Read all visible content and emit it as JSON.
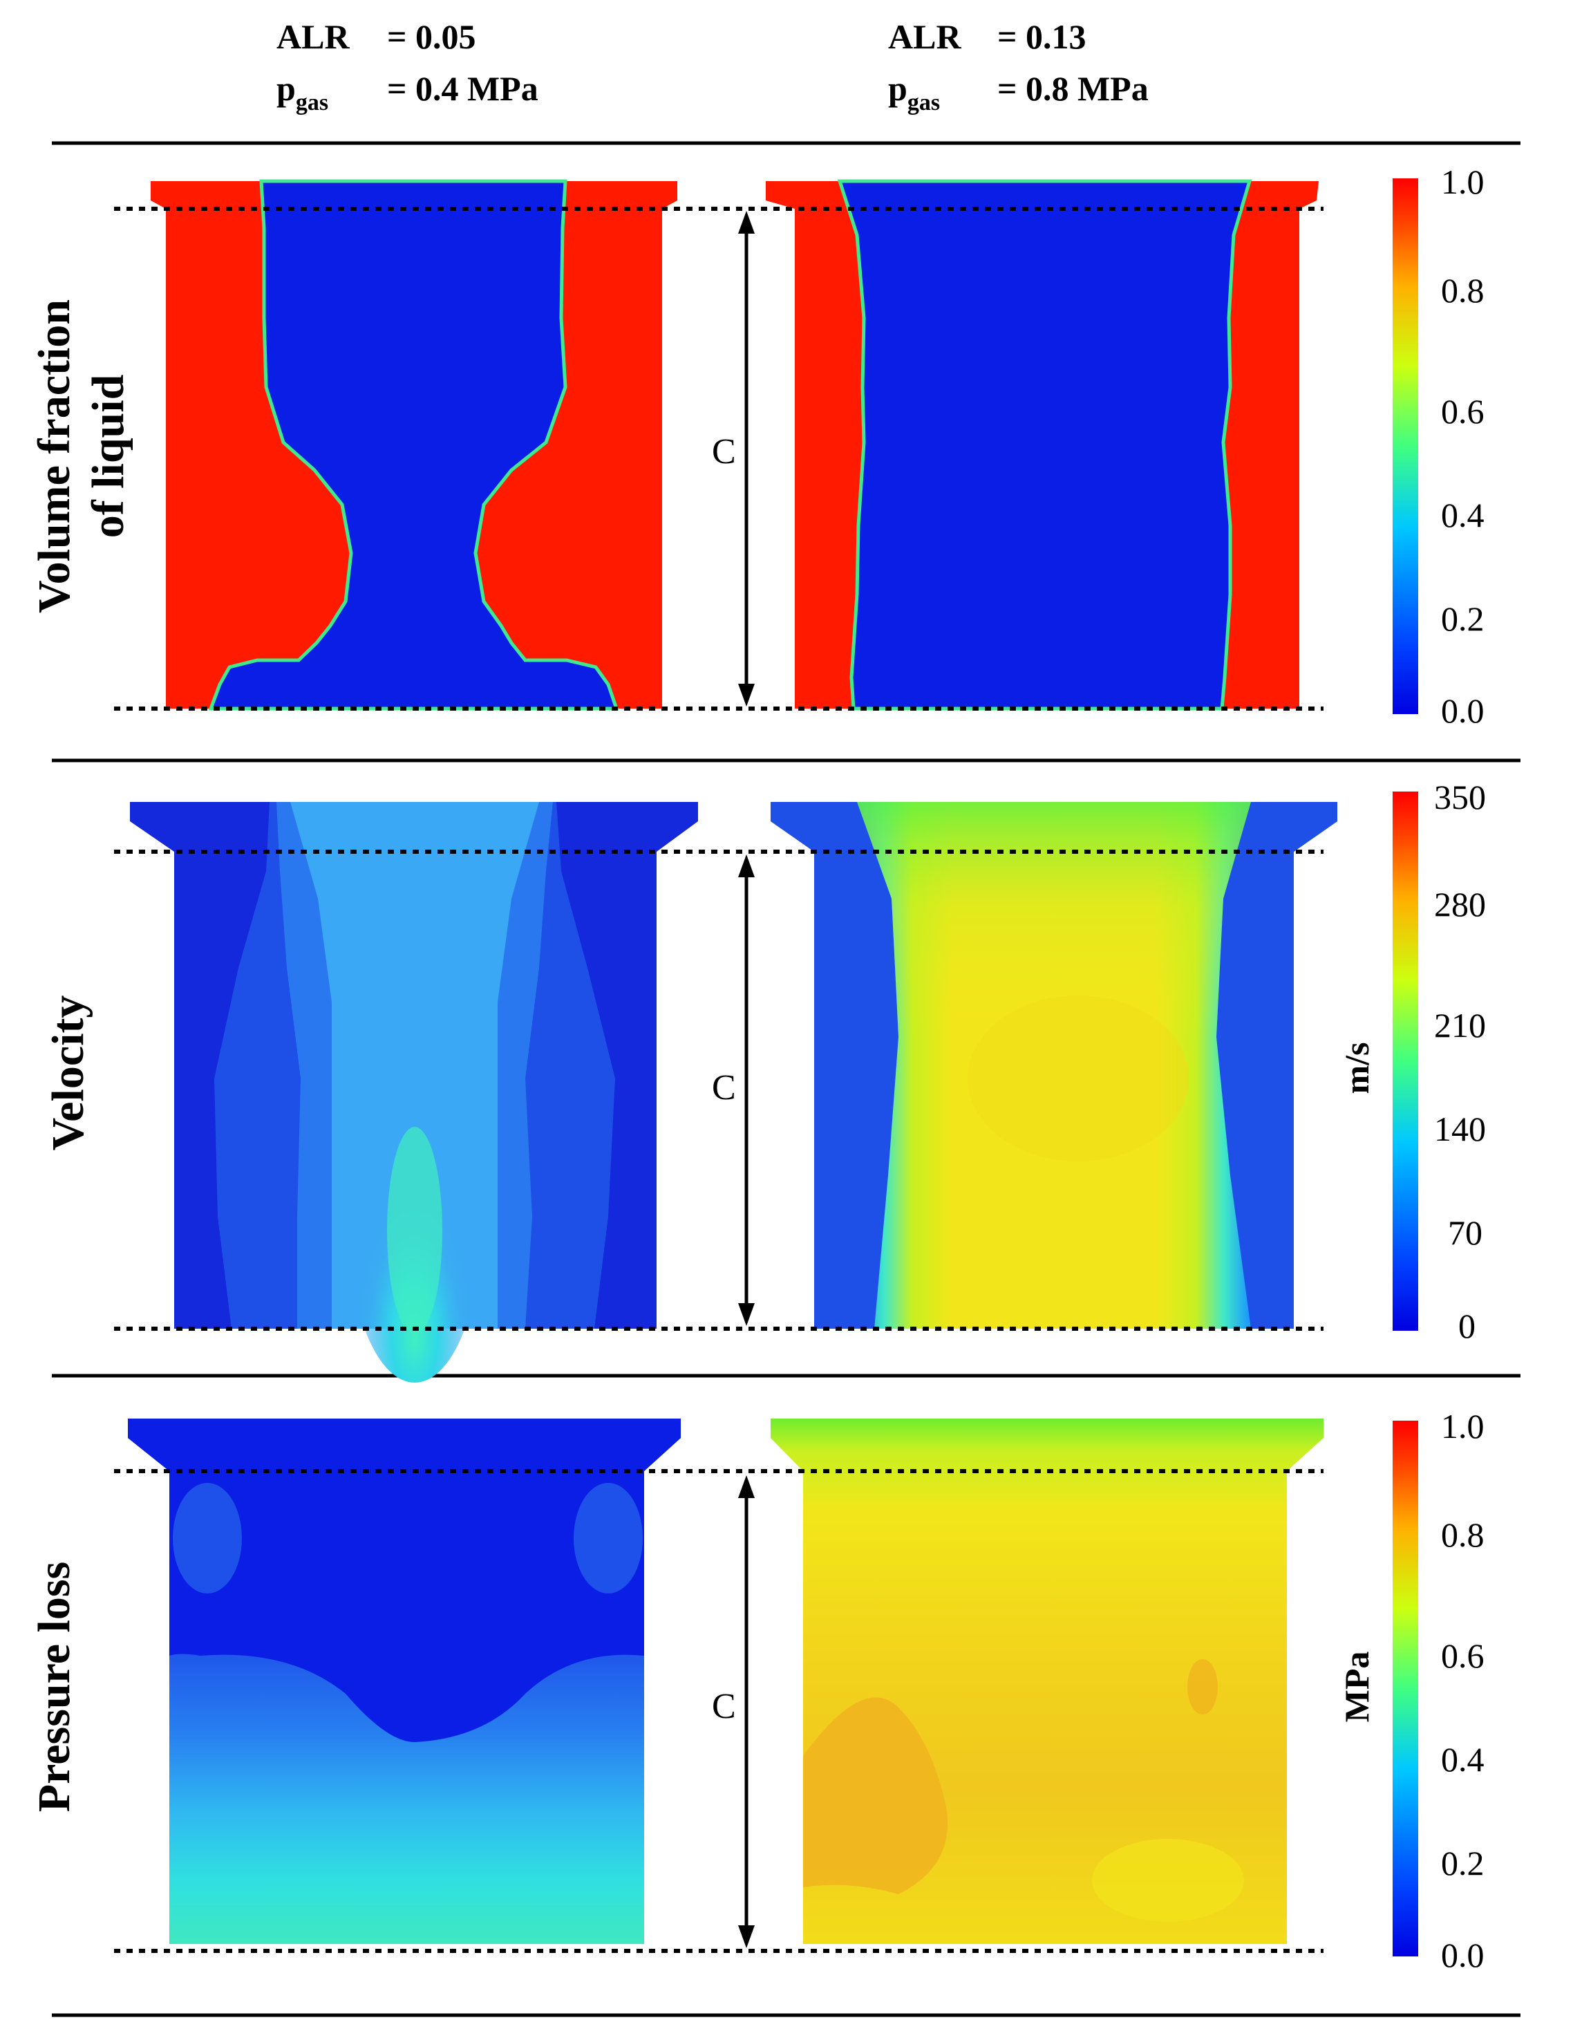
{
  "headers": {
    "left": {
      "alr_label": "ALR",
      "alr_value": "= 0.05",
      "p_label": "p",
      "p_sub": "gas",
      "p_value": "= 0.4 MPa"
    },
    "right": {
      "alr_label": "ALR",
      "alr_value": "= 0.13",
      "p_label": "p",
      "p_sub": "gas",
      "p_value": "= 0.8 MPa"
    }
  },
  "rows": [
    {
      "id": "volume-fraction",
      "title_line1": "Volume fraction",
      "title_line2": "of liquid",
      "dimension_label": "C",
      "unit": "",
      "colorbar": {
        "min": 0.0,
        "max": 1.0,
        "ticks": [
          "1.0",
          "0.8",
          "0.6",
          "0.4",
          "0.2",
          "0.0"
        ]
      }
    },
    {
      "id": "velocity",
      "title_line1": "Velocity",
      "title_line2": "",
      "dimension_label": "C",
      "unit": "m/s",
      "colorbar": {
        "min": 0,
        "max": 350,
        "ticks": [
          "350",
          "280",
          "210",
          "140",
          "70",
          "0"
        ]
      }
    },
    {
      "id": "pressure-loss",
      "title_line1": "Pressure loss",
      "title_line2": "",
      "dimension_label": "C",
      "unit": "MPa",
      "colorbar": {
        "min": 0.0,
        "max": 1.0,
        "ticks": [
          "1.0",
          "0.8",
          "0.6",
          "0.4",
          "0.2",
          "0.0"
        ]
      }
    }
  ],
  "colors": {
    "jet_low": "#0000e6",
    "jet_high": "#ff0000",
    "vof_liquid": "#ff1a00",
    "vof_gas": "#0a1ee6",
    "vel_low": "#1a2ee0",
    "vel_mid": "#2bb8ff",
    "vel_high_right": "#f2e61a",
    "p_low": "#0a1ee6",
    "p_left_bottom": "#3fe8c8",
    "p_right": "#f0d21f"
  }
}
